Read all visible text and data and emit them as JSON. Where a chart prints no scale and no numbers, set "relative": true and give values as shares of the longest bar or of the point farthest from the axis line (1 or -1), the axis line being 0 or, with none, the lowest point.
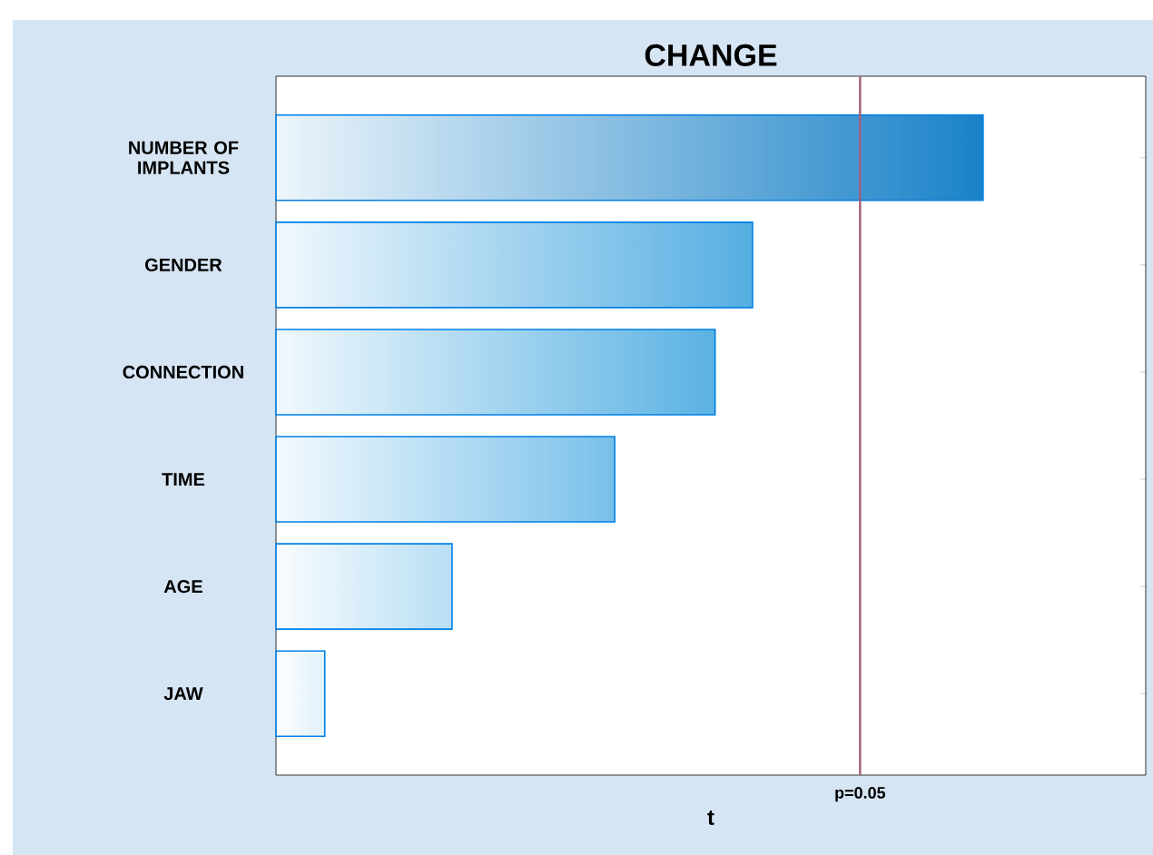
{
  "chart_data": {
    "type": "bar",
    "orientation": "horizontal",
    "relative": true,
    "title": "CHANGE",
    "xlabel": "t",
    "categories": [
      "NUMBER OF IMPLANTS",
      "GENDER",
      "CONNECTION",
      "TIME",
      "AGE",
      "JAW"
    ],
    "values": [
      1,
      0.674,
      0.621,
      0.479,
      0.249,
      0.069
    ],
    "colors": [
      "#1a82c8",
      "#55aee2",
      "#5ab2e3",
      "#79c0ea",
      "#b8def4",
      "#e2f2fb"
    ],
    "ref_lines": [
      {
        "axis": "x",
        "value": 0.826,
        "color": "#a06078"
      }
    ],
    "annotations": [
      "p=0.05"
    ],
    "grid": false
  }
}
